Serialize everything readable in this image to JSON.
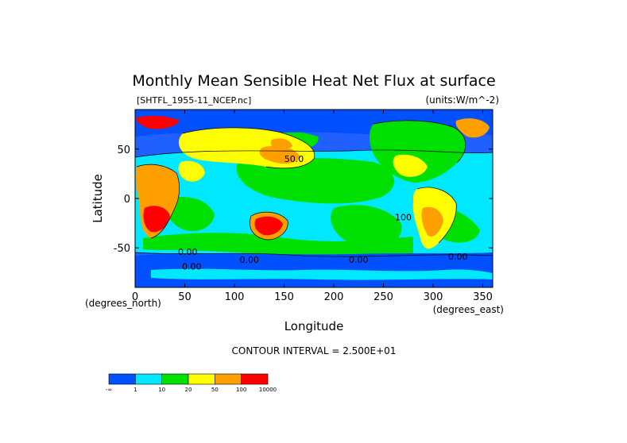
{
  "chart_data": {
    "type": "heatmap",
    "title": "Monthly Mean Sensible Heat Net Flux at surface",
    "dataset_label": "[SHTFL_1955-11_NCEP.nc]",
    "units_label": "(units:W/m^-2)",
    "xlabel": "Longitude",
    "ylabel": "Latitude",
    "x_units_label": "(degrees_east)",
    "y_units_label": "(degrees_north)",
    "xlim": [
      0,
      360
    ],
    "ylim": [
      -90,
      90
    ],
    "x_ticks": [
      0,
      50,
      100,
      150,
      200,
      250,
      300,
      350
    ],
    "y_ticks": [
      -50,
      0,
      50
    ],
    "contour_interval_text": "CONTOUR INTERVAL = 2.500E+01",
    "contour_labels": [
      {
        "lon": 160,
        "lat": 37,
        "text": "50.0"
      },
      {
        "lon": 53,
        "lat": -57,
        "text": "0.00"
      },
      {
        "lon": 115,
        "lat": -65,
        "text": "0.00"
      },
      {
        "lon": 225,
        "lat": -65,
        "text": "0.00"
      },
      {
        "lon": 325,
        "lat": -62,
        "text": "0.00"
      },
      {
        "lon": 57,
        "lat": -72,
        "text": "0.00"
      },
      {
        "lon": 270,
        "lat": -22,
        "text": "100"
      }
    ],
    "colorbar": {
      "tick_labels": [
        "-∞",
        "1",
        "10",
        "20",
        "50",
        "100",
        "10000"
      ],
      "colors": [
        "#0050ff",
        "#00e8ff",
        "#00e000",
        "#ffff00",
        "#ffa000",
        "#ff0000"
      ]
    },
    "background_color": "#2060ff"
  }
}
